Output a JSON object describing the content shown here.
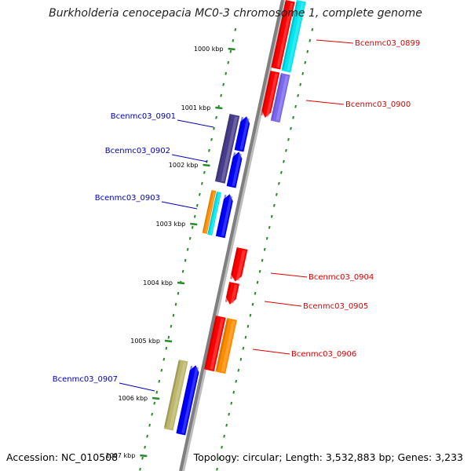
{
  "title": "Burkholderia cenocepacia MC0-3 chromosome 1, complete genome",
  "footer": {
    "accession": "Accession: NC_010508",
    "summary": "Topology: circular; Length: 3,532,883 bp; Genes: 3,233"
  },
  "colors": {
    "forward_label": "#dd0000",
    "reverse_label": "#0000bb",
    "backbone": "#7f7f7f",
    "tick": "#2a8a2a"
  },
  "ticks": [
    {
      "label": "1000 kbp"
    },
    {
      "label": "1001 kbp"
    },
    {
      "label": "1002 kbp"
    },
    {
      "label": "1003 kbp"
    },
    {
      "label": "1004 kbp"
    },
    {
      "label": "1005 kbp"
    },
    {
      "label": "1006 kbp"
    },
    {
      "label": "1007 kbp"
    }
  ],
  "genes": [
    {
      "name": "Bcenmc03_0899",
      "strand": "forward",
      "colors": [
        "#ff0000",
        "#00e5ee"
      ]
    },
    {
      "name": "Bcenmc03_0900",
      "strand": "forward",
      "colors": [
        "#ff0000",
        "#7b68ee"
      ]
    },
    {
      "name": "Bcenmc03_0901",
      "strand": "reverse",
      "colors": [
        "#0000ff",
        "#483d8b"
      ]
    },
    {
      "name": "Bcenmc03_0902",
      "strand": "reverse",
      "colors": [
        "#0000ff",
        "#483d8b"
      ]
    },
    {
      "name": "Bcenmc03_0903",
      "strand": "reverse",
      "colors": [
        "#0000ff",
        "#00e5ee",
        "#ff8c00"
      ]
    },
    {
      "name": "Bcenmc03_0904",
      "strand": "forward",
      "colors": [
        "#ff0000"
      ]
    },
    {
      "name": "Bcenmc03_0905",
      "strand": "forward",
      "colors": [
        "#ff0000"
      ]
    },
    {
      "name": "Bcenmc03_0906",
      "strand": "forward",
      "colors": [
        "#ff0000",
        "#ff8c00"
      ]
    },
    {
      "name": "Bcenmc03_0907",
      "strand": "reverse",
      "colors": [
        "#0000ff",
        "#bdb76b"
      ]
    }
  ]
}
